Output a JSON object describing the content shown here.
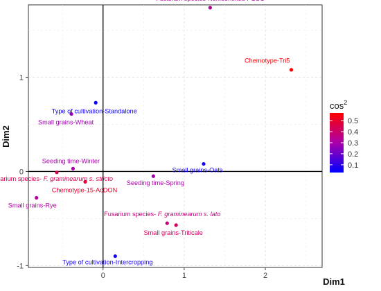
{
  "chart_data": {
    "type": "scatter",
    "xlabel": "Dim1",
    "ylabel": "Dim2",
    "xlim": [
      -0.92,
      2.7
    ],
    "ylim": [
      -1.02,
      1.77
    ],
    "xticks": [
      0,
      1,
      2
    ],
    "yticks": [
      -1,
      0,
      1
    ],
    "grid": true,
    "legend": {
      "title_base": "cos",
      "title_sup": "2",
      "position": "right",
      "ticks": [
        0.1,
        0.2,
        0.3,
        0.4,
        0.5
      ],
      "range": [
        0.03,
        0.57
      ],
      "colors": [
        "#0000ff",
        "#ff0000"
      ]
    },
    "points": [
      {
        "label": "Fusarium species-Nonidentified FGSC",
        "x": 1.32,
        "y": 1.74,
        "cos2": 0.33
      },
      {
        "label": "Chemotype-Tri5",
        "x": 2.32,
        "y": 1.08,
        "cos2": 0.56
      },
      {
        "label": "Type of cultivation-Standalone",
        "x": -0.09,
        "y": 0.73,
        "cos2": 0.05
      },
      {
        "label": "Small grains-Wheat",
        "x": -0.39,
        "y": 0.61,
        "cos2": 0.28
      },
      {
        "label": "Seeding time-Winter",
        "x": -0.37,
        "y": 0.03,
        "cos2": 0.3
      },
      {
        "label": "Small grains-Oats",
        "x": 1.24,
        "y": 0.08,
        "cos2": 0.06
      },
      {
        "label": "Fusarium species- F. graminearum s. stricto",
        "italic": "F. graminearum s. stricto",
        "x": -0.57,
        "y": -0.01,
        "cos2": 0.44
      },
      {
        "label": "Seeding time-Spring",
        "x": 0.62,
        "y": -0.05,
        "cos2": 0.3
      },
      {
        "label": "Chemotype-15-AcDON",
        "x": -0.22,
        "y": -0.11,
        "cos2": 0.5
      },
      {
        "label": "Small grains-Rye",
        "x": -0.82,
        "y": -0.28,
        "cos2": 0.32
      },
      {
        "label": "Fusarium species- F. graminearum s. lato",
        "italic": "F. graminearum s. lato",
        "x": 0.79,
        "y": -0.55,
        "cos2": 0.38
      },
      {
        "label": "Small grains-Triticale",
        "x": 0.9,
        "y": -0.57,
        "cos2": 0.42
      },
      {
        "label": "Type of cultivation-Intercropping",
        "x": 0.15,
        "y": -0.9,
        "cos2": 0.06
      }
    ]
  }
}
